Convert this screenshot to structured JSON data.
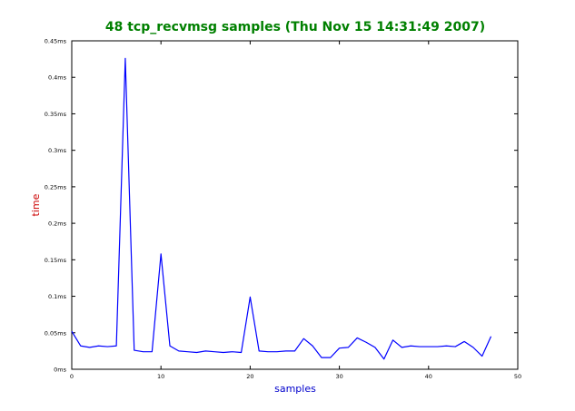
{
  "chart_data": {
    "type": "line",
    "title": "48 tcp_recvmsg samples (Thu Nov 15 14:31:49 2007)",
    "xlabel": "samples",
    "ylabel": "time",
    "xlim": [
      0,
      50
    ],
    "ylim": [
      0,
      0.45
    ],
    "x_ticks": [
      0,
      10,
      20,
      30,
      40,
      50
    ],
    "x_tick_labels": [
      "0",
      "10",
      "20",
      "30",
      "40",
      "50"
    ],
    "y_ticks": [
      0,
      0.05,
      0.1,
      0.15,
      0.2,
      0.25,
      0.3,
      0.35,
      0.4,
      0.45
    ],
    "y_tick_labels": [
      "0ms",
      "0.05ms",
      "0.1ms",
      "0.15ms",
      "0.2ms",
      "0.25ms",
      "0.3ms",
      "0.35ms",
      "0.4ms",
      "0.45ms"
    ],
    "grid": false,
    "series": [
      {
        "x": [
          0,
          1,
          2,
          3,
          4,
          5,
          6,
          7,
          8,
          9,
          10,
          11,
          12,
          13,
          14,
          15,
          16,
          17,
          18,
          19,
          20,
          21,
          22,
          23,
          24,
          25,
          26,
          27,
          28,
          29,
          30,
          31,
          32,
          33,
          34,
          35,
          36,
          37,
          38,
          39,
          40,
          41,
          42,
          43,
          44,
          45,
          46,
          47
        ],
        "values": [
          0.052,
          0.032,
          0.03,
          0.032,
          0.031,
          0.032,
          0.426,
          0.026,
          0.024,
          0.024,
          0.158,
          0.032,
          0.025,
          0.024,
          0.023,
          0.025,
          0.024,
          0.023,
          0.024,
          0.023,
          0.099,
          0.025,
          0.024,
          0.024,
          0.025,
          0.025,
          0.042,
          0.032,
          0.016,
          0.016,
          0.029,
          0.03,
          0.043,
          0.037,
          0.03,
          0.014,
          0.04,
          0.03,
          0.032,
          0.031,
          0.031,
          0.031,
          0.032,
          0.031,
          0.038,
          0.03,
          0.018,
          0.045
        ]
      }
    ]
  },
  "colors": {
    "title": "#008000",
    "ylabel": "#cc0000",
    "xlabel": "#0000cc",
    "line": "#0000ff"
  }
}
